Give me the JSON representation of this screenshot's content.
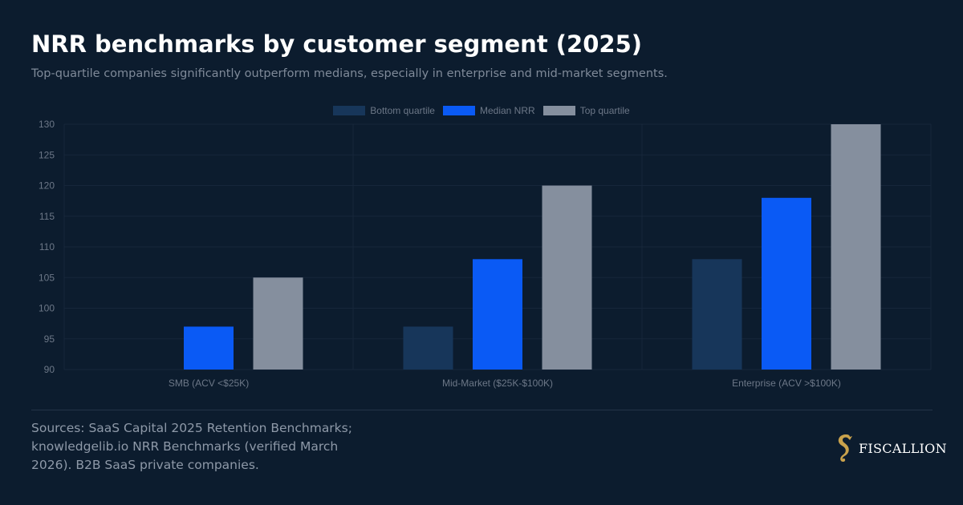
{
  "header": {
    "title": "NRR benchmarks by customer segment (2025)",
    "subtitle": "Top-quartile companies significantly outperform medians, especially in enterprise and mid-market segments."
  },
  "legend": [
    {
      "label": "Bottom quartile",
      "color": "#17365a"
    },
    {
      "label": "Median NRR",
      "color": "#0a5af5"
    },
    {
      "label": "Top quartile",
      "color": "#858f9e"
    }
  ],
  "chart_data": {
    "type": "bar",
    "categories": [
      "SMB (ACV <$25K)",
      "Mid-Market ($25K-$100K)",
      "Enterprise (ACV >$100K)"
    ],
    "series": [
      {
        "name": "Bottom quartile",
        "values": [
          null,
          97,
          108
        ]
      },
      {
        "name": "Median NRR",
        "values": [
          97,
          108,
          118
        ]
      },
      {
        "name": "Top quartile",
        "values": [
          105,
          120,
          130
        ]
      }
    ],
    "ylim": [
      90,
      130
    ],
    "yticks": [
      90,
      95,
      100,
      105,
      110,
      115,
      120,
      125,
      130
    ],
    "grid": true,
    "legend_position": "top-center"
  },
  "footer": {
    "sources": "Sources: SaaS Capital 2025 Retention Benchmarks; knowledgelib.io NRR Benchmarks (verified March 2026). B2B SaaS private companies.",
    "brand_name": "FISCALLION",
    "brand_icon": "seahorse-logo-icon",
    "brand_color": "#c9a24c"
  }
}
